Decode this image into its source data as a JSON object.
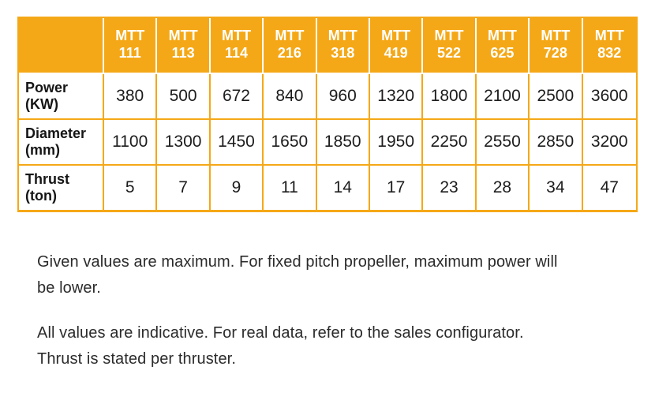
{
  "colors": {
    "table_accent_orange": "#F5A817",
    "header_text": "#FFFFFF",
    "cell_text": "#1C1C1C",
    "note_text": "#2B2B2B",
    "page_background": "#FFFFFF"
  },
  "table": {
    "columns": [
      "MTT\n111",
      "MTT\n113",
      "MTT\n114",
      "MTT\n216",
      "MTT\n318",
      "MTT\n419",
      "MTT\n522",
      "MTT\n625",
      "MTT\n728",
      "MTT\n832"
    ],
    "rows": [
      {
        "label": "Power\n(KW)",
        "values": [
          "380",
          "500",
          "672",
          "840",
          "960",
          "1320",
          "1800",
          "2100",
          "2500",
          "3600"
        ]
      },
      {
        "label": "Diameter\n(mm)",
        "values": [
          "1100",
          "1300",
          "1450",
          "1650",
          "1850",
          "1950",
          "2250",
          "2550",
          "2850",
          "3200"
        ]
      },
      {
        "label": "Thrust\n(ton)",
        "values": [
          "5",
          "7",
          "9",
          "11",
          "14",
          "17",
          "23",
          "28",
          "34",
          "47"
        ]
      }
    ]
  },
  "notes": [
    "Given values are maximum. For fixed pitch propeller, maximum power will\nbe lower.",
    "All values are indicative. For real data, refer to the sales configurator.\nThrust is stated per thruster."
  ]
}
